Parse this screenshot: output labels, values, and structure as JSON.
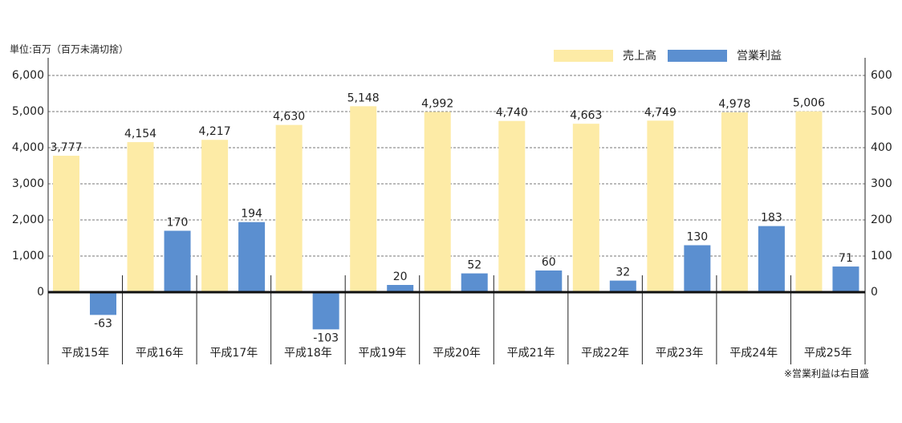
{
  "chart_data": {
    "type": "bar",
    "unit_note": "単位:百万（百万未満切捨）",
    "footnote": "※営業利益は右目盛",
    "categories": [
      "平成15年",
      "平成16年",
      "平成17年",
      "平成18年",
      "平成19年",
      "平成20年",
      "平成21年",
      "平成22年",
      "平成23年",
      "平成24年",
      "平成25年"
    ],
    "series": [
      {
        "name": "売上高",
        "color": "#fdeba6",
        "values": [
          3777,
          4154,
          4217,
          4630,
          5148,
          4992,
          4740,
          4663,
          4749,
          4978,
          5006
        ],
        "value_labels": [
          "3,777",
          "4,154",
          "4,217",
          "4,630",
          "5,148",
          "4,992",
          "4,740",
          "4,663",
          "4,749",
          "4,978",
          "5,006"
        ]
      },
      {
        "name": "営業利益",
        "color": "#5b8fd0",
        "axis": "y2",
        "values": [
          -63,
          170,
          194,
          -103,
          20,
          52,
          60,
          32,
          130,
          183,
          71
        ]
      }
    ],
    "ylim": [
      -2000,
      6000
    ],
    "yticks": [
      0,
      {
        "value": 1000,
        "label": "1,000"
      },
      {
        "value": 2000,
        "label": "2,000"
      },
      {
        "value": 3000,
        "label": "3,000"
      },
      {
        "value": 4000,
        "label": "4,000"
      },
      {
        "value": 5000,
        "label": "5,000"
      },
      {
        "value": 6000,
        "label": "6,000"
      }
    ],
    "y2lim": [
      -200,
      600
    ],
    "y2ticks": [
      0,
      100,
      200,
      300,
      400,
      500,
      600
    ],
    "grid": true
  }
}
